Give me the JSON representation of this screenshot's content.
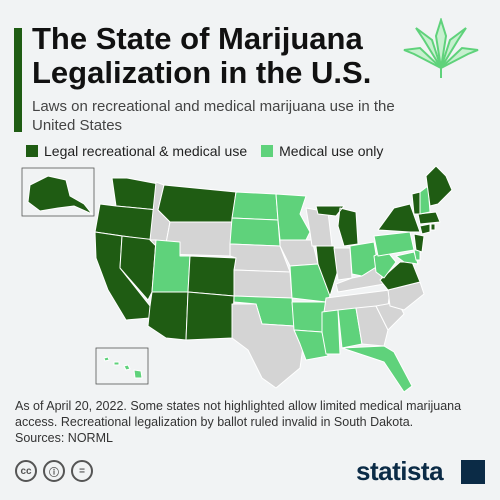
{
  "title_line1": "The State of Marijuana",
  "title_line2": "Legalization in the U.S.",
  "subtitle": "Laws on recreational and medical marijuana use in the United States",
  "legend": {
    "recreational": "Legal recreational & medical use",
    "medical": "Medical use only"
  },
  "colors": {
    "recreational": "#1f5c13",
    "medical": "#5fd27b",
    "none": "#d4d4d4",
    "accent": "#1f5c13",
    "brand": "#0b2b46"
  },
  "states": {
    "recreational": [
      "AK",
      "WA",
      "OR",
      "CA",
      "NV",
      "MT",
      "AZ",
      "NM",
      "CO",
      "IL",
      "MI",
      "NY",
      "VT",
      "ME",
      "MA",
      "CT",
      "RI",
      "NJ",
      "VA"
    ],
    "medical": [
      "HI",
      "UT",
      "ND",
      "SD",
      "MN",
      "MO",
      "OK",
      "AR",
      "LA",
      "MS",
      "AL",
      "FL",
      "OH",
      "WV",
      "PA",
      "MD",
      "DE",
      "NH"
    ],
    "none": [
      "ID",
      "WY",
      "NE",
      "KS",
      "TX",
      "IA",
      "WI",
      "IN",
      "KY",
      "TN",
      "GA",
      "SC",
      "NC"
    ]
  },
  "notes": "As of April 20, 2022. Some states not highlighted allow limited medical marijuana access. Recreational legalization by ballot ruled invalid in South Dakota.",
  "sources": "Sources: NORML",
  "brand": "statista",
  "icons": [
    "cc-icon",
    "by-icon",
    "nd-icon"
  ]
}
